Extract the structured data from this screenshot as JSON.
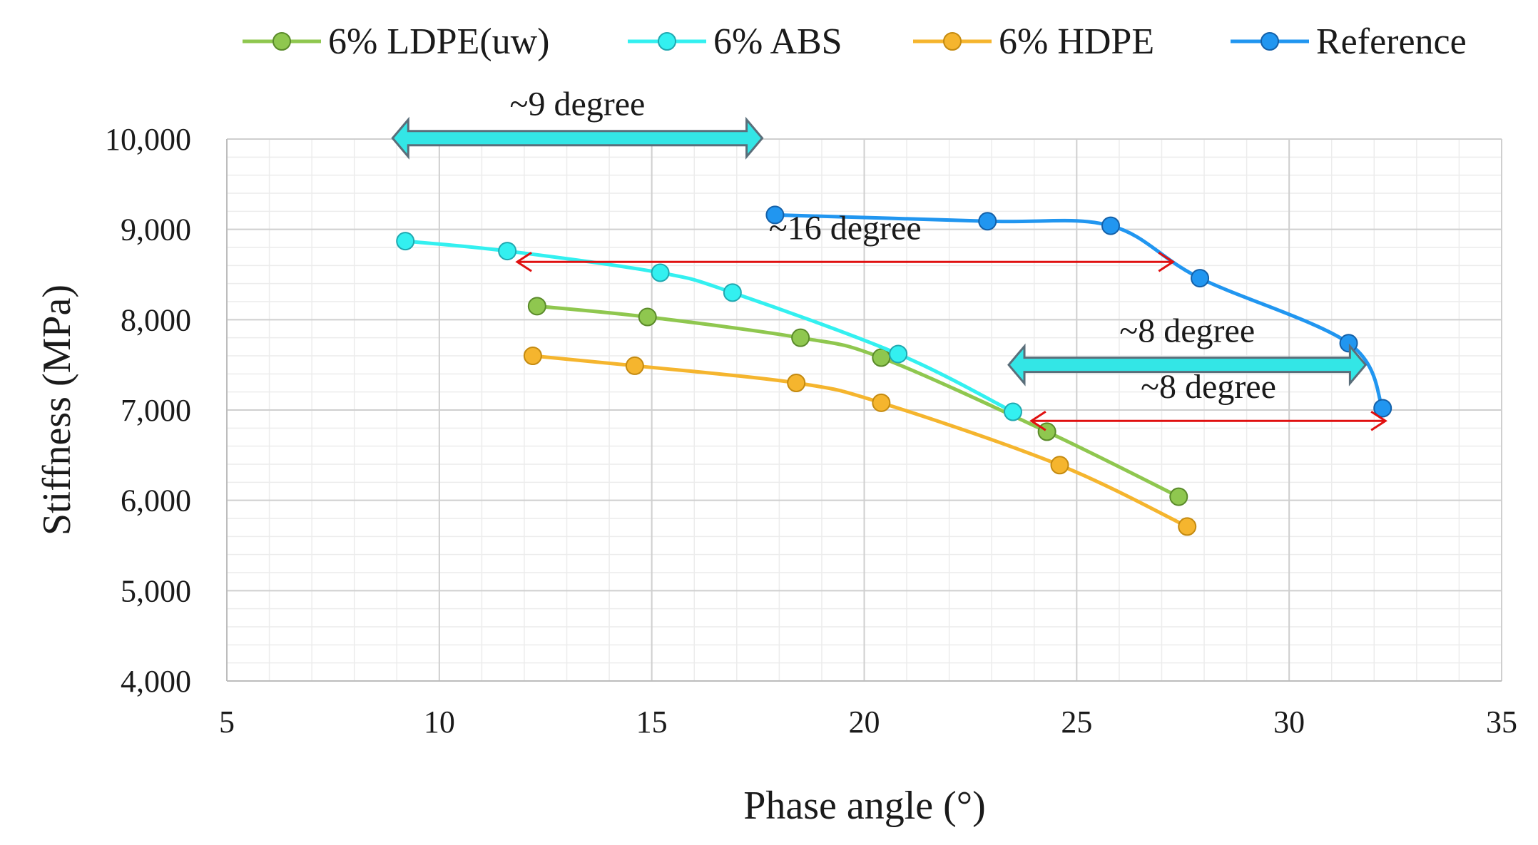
{
  "chart_data": {
    "type": "scatter",
    "title": "",
    "xlabel": "Phase angle (°)",
    "ylabel": "Stiffness (MPa)",
    "xlim": [
      5,
      35
    ],
    "ylim": [
      4000,
      10000
    ],
    "x_ticks": [
      5,
      10,
      15,
      20,
      25,
      30,
      35
    ],
    "y_ticks": [
      4000,
      5000,
      6000,
      7000,
      8000,
      9000,
      10000
    ],
    "x_tick_labels": [
      "5",
      "10",
      "15",
      "20",
      "25",
      "30",
      "35"
    ],
    "y_tick_labels": [
      "4,000",
      "5,000",
      "6,000",
      "7,000",
      "8,000",
      "9,000",
      "10,000"
    ],
    "grid": true,
    "legend_position": "top",
    "series": [
      {
        "name": "6% LDPE(uw)",
        "color": "#8fc74f",
        "stroke": "#5a8a2a",
        "x": [
          12.3,
          14.9,
          18.5,
          20.4,
          24.3,
          27.4
        ],
        "y": [
          8150,
          8030,
          7800,
          7580,
          6760,
          6040
        ]
      },
      {
        "name": "6% ABS",
        "color": "#33f0f0",
        "stroke": "#20a8b0",
        "x": [
          9.2,
          11.6,
          15.2,
          16.9,
          20.8,
          23.5
        ],
        "y": [
          8870,
          8760,
          8520,
          8300,
          7620,
          6980
        ]
      },
      {
        "name": "6% HDPE",
        "color": "#f5b52e",
        "stroke": "#c48a10",
        "x": [
          12.2,
          14.6,
          18.4,
          20.4,
          24.6,
          27.6
        ],
        "y": [
          7600,
          7490,
          7300,
          7080,
          6390,
          5710
        ]
      },
      {
        "name": "Reference",
        "color": "#2196f0",
        "stroke": "#1460a8",
        "x": [
          17.9,
          22.9,
          25.8,
          27.9,
          31.4,
          32.2
        ],
        "y": [
          9160,
          9090,
          9040,
          8460,
          7740,
          7020
        ]
      }
    ],
    "annotations": [
      {
        "text": "~9 degree",
        "x_from": 8.9,
        "x_to": 17.6,
        "y": 10010,
        "style": "thick",
        "color": "#33e6e6",
        "edge": "#5a6e7a"
      },
      {
        "text": "~16 degree",
        "x_from": 11.8,
        "x_to": 27.3,
        "y": 8640,
        "style": "thin",
        "color": "#e01010"
      },
      {
        "text": "~8 degree",
        "x_from": 23.4,
        "x_to": 31.8,
        "y": 7500,
        "style": "thick",
        "color": "#33e6e6",
        "edge": "#5a6e7a"
      },
      {
        "text": "~8 degree",
        "x_from": 23.9,
        "x_to": 32.3,
        "y": 6880,
        "style": "thin",
        "color": "#e01010"
      }
    ]
  }
}
